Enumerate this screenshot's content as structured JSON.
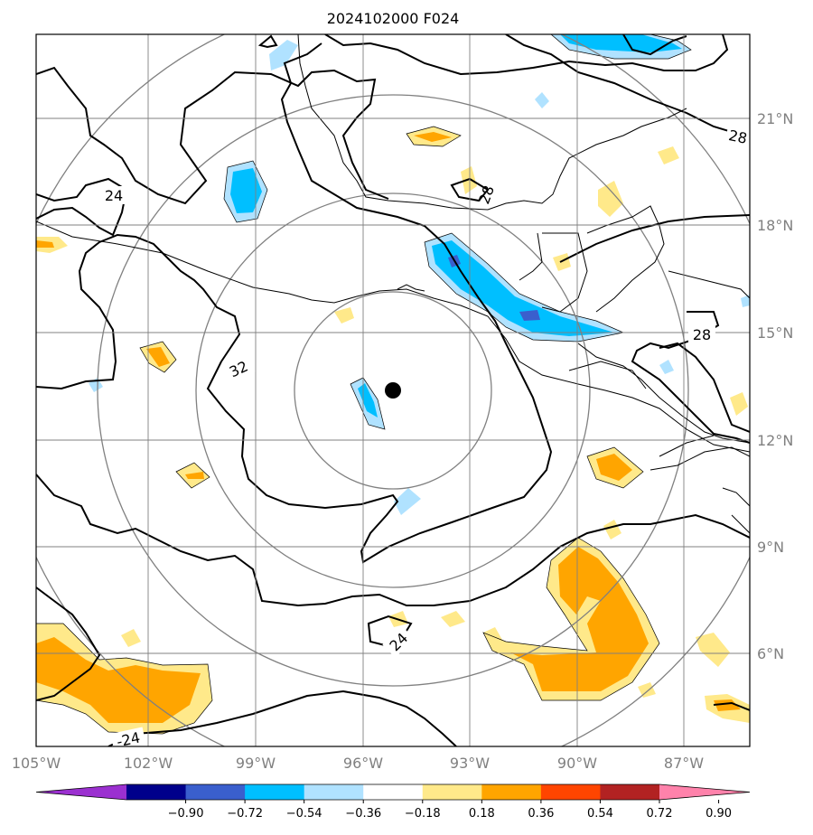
{
  "title": "2024102000 F024",
  "lon_labels": [
    "105°W",
    "102°W",
    "99°W",
    "96°W",
    "93°W",
    "90°W",
    "87°W"
  ],
  "lat_labels": [
    "21°N",
    "18°N",
    "15°N",
    "12°N",
    "9°N",
    "6°N"
  ],
  "contour_labels": [
    "24",
    "32",
    "28",
    "28",
    "-24",
    "24",
    "28"
  ],
  "colorbar": {
    "ticks": [
      "−0.90",
      "−0.72",
      "−0.54",
      "−0.36",
      "−0.18",
      "0.18",
      "0.36",
      "0.54",
      "0.72",
      "0.90"
    ],
    "colors": [
      "#9b30d0",
      "#00008b",
      "#3a5fcd",
      "#00bfff",
      "#b0e2ff",
      "#ffffff",
      "#ffe98a",
      "#ffa500",
      "#ff4500",
      "#b22222",
      "#ff82ab"
    ]
  },
  "center_marker": {
    "lon": -95.0,
    "lat": 13.4
  },
  "extent": {
    "lon_min": -105.0,
    "lon_max": -85.0,
    "lat_min": 3.5,
    "lat_max": 23.5
  },
  "range_rings_deg": [
    2.75,
    5.5,
    8.25,
    11.0
  ]
}
